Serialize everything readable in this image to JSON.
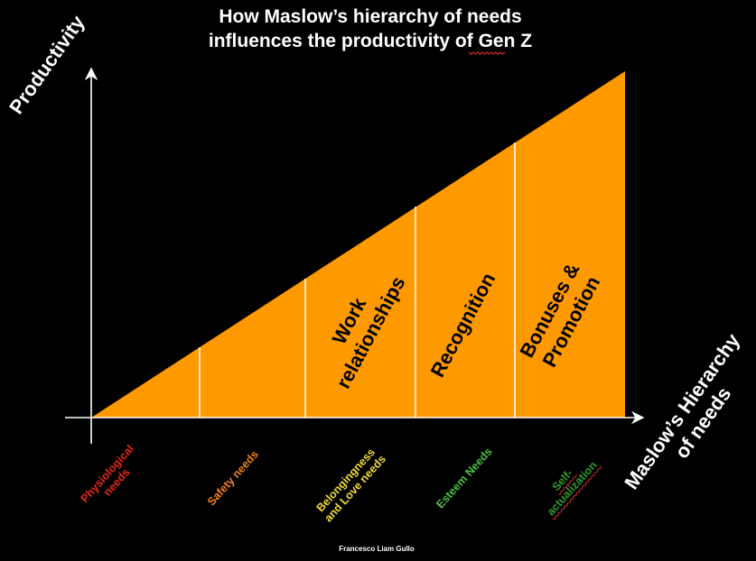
{
  "title": {
    "line1": "How Maslow’s hierarchy of needs",
    "line2_prefix": "influences the productivity of ",
    "line2_suffix": "Gen Z"
  },
  "y_axis_label": "Productivity",
  "x_axis_label": {
    "line1": "Maslow’s Hierarchy",
    "line2": "of needs"
  },
  "segments": [
    {
      "lines": []
    },
    {
      "lines": []
    },
    {
      "lines": [
        "Work",
        "relationships"
      ]
    },
    {
      "lines": [
        "Recognition"
      ]
    },
    {
      "lines": [
        "Bonuses &",
        "Promotion"
      ]
    }
  ],
  "categories": [
    {
      "lines": [
        "Physiological",
        "needs"
      ],
      "color": "#e8271c"
    },
    {
      "lines": [
        "Safety needs"
      ],
      "color": "#f0821e"
    },
    {
      "lines": [
        "Belongingness",
        "and Love needs"
      ],
      "color": "#f2dc3a"
    },
    {
      "lines": [
        "Esteem Needs"
      ],
      "color": "#4ec040"
    },
    {
      "lines": [
        "Self-",
        "actualization"
      ],
      "color": "#2f9a2a"
    }
  ],
  "credit": "Francesco Liam Gullo",
  "colors": {
    "background": "#000000",
    "triangle_fill": "#ff9900",
    "axis": "#ffffff",
    "divider": "#ffffff",
    "spellcheck_underline": "#d42a2a"
  }
}
